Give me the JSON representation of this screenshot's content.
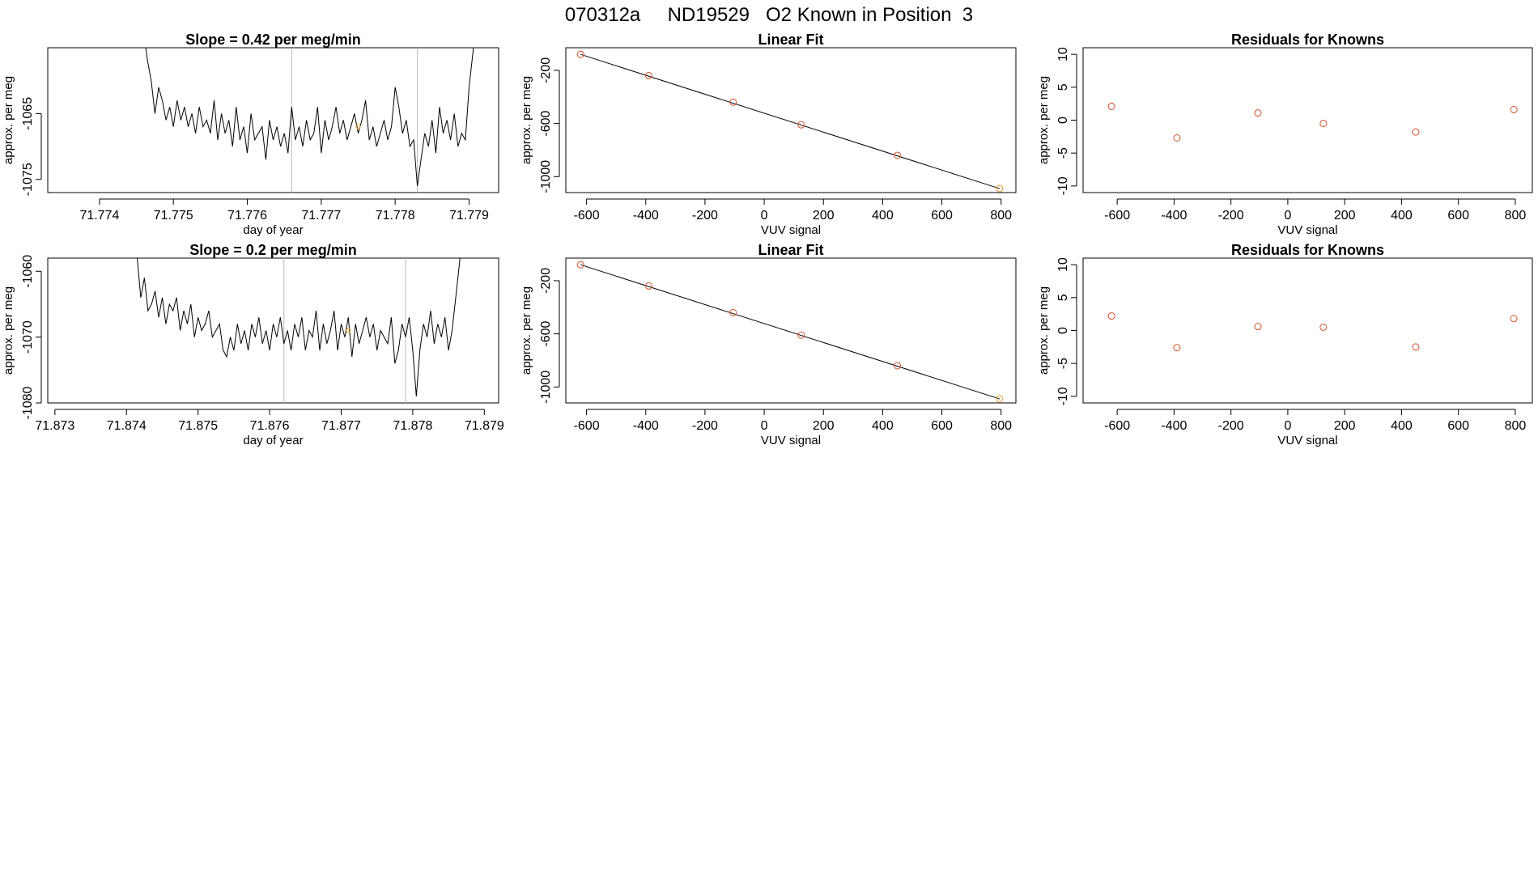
{
  "page_title": "070312a     ND19529   O2 Known in Position  3",
  "colors": {
    "series": "#000000",
    "marker": "#d9603b",
    "highlight": "#e8a33d",
    "vline": "#bbbbbb"
  },
  "chart_data": [
    {
      "id": "r1-timeseries",
      "type": "line",
      "title": "Slope =  0.42  per meg/min",
      "xlabel": "day of year",
      "ylabel": "approx. per meg",
      "xlim": [
        71.7733,
        71.7794
      ],
      "ylim": [
        -1077,
        -1055
      ],
      "xticks": [
        71.774,
        71.775,
        71.776,
        71.777,
        71.778,
        71.779
      ],
      "xtick_labels": [
        "71.774",
        "71.775",
        "71.776",
        "71.777",
        "71.778",
        "71.779"
      ],
      "yticks": [
        -1065,
        -1075
      ],
      "ytick_labels": [
        "-1065",
        "-1075"
      ],
      "vlines": [
        71.7766,
        71.7783
      ],
      "highlight_point": {
        "x": 71.7775,
        "y": -1067
      },
      "x": [
        71.77465,
        71.7747,
        71.77475,
        71.7748,
        71.77485,
        71.7749,
        71.77495,
        71.775,
        71.77505,
        71.7751,
        71.77515,
        71.7752,
        71.77525,
        71.7753,
        71.77535,
        71.7754,
        71.77545,
        71.7755,
        71.77555,
        71.7756,
        71.77565,
        71.7757,
        71.77575,
        71.7758,
        71.77585,
        71.7759,
        71.77595,
        71.776,
        71.77605,
        71.7761,
        71.77615,
        71.7762,
        71.77625,
        71.7763,
        71.77635,
        71.7764,
        71.77645,
        71.7765,
        71.77655,
        71.7766,
        71.77665,
        71.7767,
        71.77675,
        71.7768,
        71.77685,
        71.7769,
        71.77695,
        71.777,
        71.77705,
        71.7771,
        71.77715,
        71.7772,
        71.77725,
        71.7773,
        71.77735,
        71.7774,
        71.77745,
        71.7775,
        71.77755,
        71.7776,
        71.77765,
        71.7777,
        71.77775,
        71.7778,
        71.77785,
        71.7779,
        71.77795,
        71.778,
        71.77805,
        71.7781,
        71.77815,
        71.7782,
        71.77825,
        71.7783,
        71.77835,
        71.7784,
        71.77845,
        71.7785,
        71.77855,
        71.7786,
        71.77865,
        71.7787,
        71.77875,
        71.7788,
        71.77885,
        71.7789,
        71.77895,
        71.779,
        71.77905
      ],
      "y": [
        -1057,
        -1060,
        -1065,
        -1061,
        -1063,
        -1066,
        -1064,
        -1067,
        -1063,
        -1066,
        -1064,
        -1067,
        -1065,
        -1068,
        -1064,
        -1067,
        -1066,
        -1068,
        -1063,
        -1069,
        -1065,
        -1068,
        -1066,
        -1070,
        -1064,
        -1069,
        -1067,
        -1071,
        -1065,
        -1069,
        -1068,
        -1067,
        -1072,
        -1066,
        -1069,
        -1067,
        -1070,
        -1068,
        -1071,
        -1064,
        -1069,
        -1067,
        -1070,
        -1066,
        -1069,
        -1068,
        -1064,
        -1071,
        -1066,
        -1069,
        -1067,
        -1064,
        -1068,
        -1066,
        -1069,
        -1067,
        -1065,
        -1068,
        -1066,
        -1063,
        -1069,
        -1067,
        -1070,
        -1068,
        -1066,
        -1069,
        -1067,
        -1061,
        -1064,
        -1068,
        -1066,
        -1070,
        -1069,
        -1076,
        -1072,
        -1068,
        -1070,
        -1066,
        -1071,
        -1064,
        -1068,
        -1066,
        -1069,
        -1065,
        -1070,
        -1068,
        -1069,
        -1061,
        -1056
      ]
    },
    {
      "id": "r1-linearfit",
      "type": "scatter",
      "title": "Linear Fit",
      "xlabel": "VUV signal",
      "ylabel": "approx. per meg",
      "xlim": [
        -670,
        850
      ],
      "ylim": [
        -1120,
        -30
      ],
      "xticks": [
        -600,
        -400,
        -200,
        0,
        200,
        400,
        600,
        800
      ],
      "xtick_labels": [
        "-600",
        "-400",
        "-200",
        "0",
        "200",
        "400",
        "600",
        "800"
      ],
      "yticks": [
        -200,
        -600,
        -1000
      ],
      "ytick_labels": [
        "-200",
        "-600",
        "-1000"
      ],
      "points": [
        [
          -620,
          -80
        ],
        [
          -390,
          -240
        ],
        [
          -105,
          -440
        ],
        [
          125,
          -610
        ],
        [
          450,
          -840
        ],
        [
          795,
          -1090
        ]
      ],
      "fit_line": [
        [
          -620,
          -80
        ],
        [
          795,
          -1090
        ]
      ],
      "highlight_index": 5
    },
    {
      "id": "r1-residuals",
      "type": "scatter",
      "title": "Residuals for Knowns",
      "xlabel": "VUV signal",
      "ylabel": "approx. per meg",
      "xlim": [
        -720,
        860
      ],
      "ylim": [
        -11,
        11
      ],
      "xticks": [
        -600,
        -400,
        -200,
        0,
        200,
        400,
        600,
        800
      ],
      "xtick_labels": [
        "-600",
        "-400",
        "-200",
        "0",
        "200",
        "400",
        "600",
        "800"
      ],
      "yticks": [
        10,
        5,
        0,
        -5,
        -10
      ],
      "ytick_labels": [
        "10",
        "5",
        "0",
        "-5",
        "-10"
      ],
      "points": [
        [
          -620,
          2.1
        ],
        [
          -390,
          -2.7
        ],
        [
          -105,
          1.1
        ],
        [
          125,
          -0.5
        ],
        [
          450,
          -1.8
        ],
        [
          795,
          1.6
        ]
      ]
    },
    {
      "id": "r2-timeseries",
      "type": "line",
      "title": "Slope =  0.2  per meg/min",
      "xlabel": "day of year",
      "ylabel": "approx. per meg",
      "xlim": [
        71.8729,
        71.8792
      ],
      "ylim": [
        -1080,
        -1058
      ],
      "xticks": [
        71.873,
        71.874,
        71.875,
        71.876,
        71.877,
        71.878,
        71.879
      ],
      "xtick_labels": [
        "71.873",
        "71.874",
        "71.875",
        "71.876",
        "71.877",
        "71.878",
        "71.879"
      ],
      "yticks": [
        -1060,
        -1070,
        -1080
      ],
      "ytick_labels": [
        "-1060",
        "-1070",
        "-1080"
      ],
      "vlines": [
        71.8762,
        71.8779
      ],
      "highlight_point": {
        "x": 71.8771,
        "y": -1069
      },
      "x": [
        71.87415,
        71.8742,
        71.87425,
        71.8743,
        71.87435,
        71.8744,
        71.87445,
        71.8745,
        71.87455,
        71.8746,
        71.87465,
        71.8747,
        71.87475,
        71.8748,
        71.87485,
        71.8749,
        71.87495,
        71.875,
        71.87505,
        71.8751,
        71.87515,
        71.8752,
        71.87525,
        71.8753,
        71.87535,
        71.8754,
        71.87545,
        71.8755,
        71.87555,
        71.8756,
        71.87565,
        71.8757,
        71.87575,
        71.8758,
        71.87585,
        71.8759,
        71.87595,
        71.876,
        71.87605,
        71.8761,
        71.87615,
        71.8762,
        71.87625,
        71.8763,
        71.87635,
        71.8764,
        71.87645,
        71.8765,
        71.87655,
        71.8766,
        71.87665,
        71.8767,
        71.87675,
        71.8768,
        71.87685,
        71.8769,
        71.87695,
        71.877,
        71.87705,
        71.8771,
        71.87715,
        71.8772,
        71.87725,
        71.8773,
        71.87735,
        71.8774,
        71.87745,
        71.8775,
        71.87755,
        71.8776,
        71.87765,
        71.8777,
        71.87775,
        71.8778,
        71.87785,
        71.8779,
        71.87795,
        71.878,
        71.87805,
        71.8781,
        71.87815,
        71.8782,
        71.87825,
        71.8783,
        71.87835,
        71.8784,
        71.87845,
        71.8785,
        71.87855,
        71.8786,
        71.87865
      ],
      "y": [
        -1058,
        -1064,
        -1061,
        -1066,
        -1065,
        -1063,
        -1067,
        -1064,
        -1068,
        -1065,
        -1066,
        -1064,
        -1069,
        -1066,
        -1068,
        -1065,
        -1070,
        -1067,
        -1069,
        -1068,
        -1066,
        -1070,
        -1069,
        -1068,
        -1072,
        -1073,
        -1070,
        -1072,
        -1068,
        -1071,
        -1069,
        -1072,
        -1068,
        -1070,
        -1067,
        -1071,
        -1069,
        -1072,
        -1068,
        -1070,
        -1067,
        -1071,
        -1069,
        -1072,
        -1068,
        -1070,
        -1067,
        -1072,
        -1069,
        -1070,
        -1066,
        -1072,
        -1068,
        -1071,
        -1069,
        -1066,
        -1072,
        -1068,
        -1070,
        -1067,
        -1073,
        -1068,
        -1071,
        -1069,
        -1067,
        -1070,
        -1068,
        -1072,
        -1069,
        -1070,
        -1071,
        -1067,
        -1074,
        -1072,
        -1068,
        -1070,
        -1067,
        -1072,
        -1079,
        -1072,
        -1068,
        -1070,
        -1066,
        -1071,
        -1068,
        -1070,
        -1067,
        -1072,
        -1069,
        -1064,
        -1059
      ]
    },
    {
      "id": "r2-linearfit",
      "type": "scatter",
      "title": "Linear Fit",
      "xlabel": "VUV signal",
      "ylabel": "approx. per meg",
      "xlim": [
        -670,
        850
      ],
      "ylim": [
        -1120,
        -30
      ],
      "xticks": [
        -600,
        -400,
        -200,
        0,
        200,
        400,
        600,
        800
      ],
      "xtick_labels": [
        "-600",
        "-400",
        "-200",
        "0",
        "200",
        "400",
        "600",
        "800"
      ],
      "yticks": [
        -200,
        -600,
        -1000
      ],
      "ytick_labels": [
        "-200",
        "-600",
        "-1000"
      ],
      "points": [
        [
          -620,
          -80
        ],
        [
          -390,
          -240
        ],
        [
          -105,
          -440
        ],
        [
          125,
          -610
        ],
        [
          450,
          -840
        ],
        [
          795,
          -1090
        ]
      ],
      "fit_line": [
        [
          -620,
          -80
        ],
        [
          795,
          -1090
        ]
      ],
      "highlight_index": 5
    },
    {
      "id": "r2-residuals",
      "type": "scatter",
      "title": "Residuals for Knowns",
      "xlabel": "VUV signal",
      "ylabel": "approx. per meg",
      "xlim": [
        -720,
        860
      ],
      "ylim": [
        -11,
        11
      ],
      "xticks": [
        -600,
        -400,
        -200,
        0,
        200,
        400,
        600,
        800
      ],
      "xtick_labels": [
        "-600",
        "-400",
        "-200",
        "0",
        "200",
        "400",
        "600",
        "800"
      ],
      "yticks": [
        10,
        5,
        0,
        -5,
        -10
      ],
      "ytick_labels": [
        "10",
        "5",
        "0",
        "-5",
        "-10"
      ],
      "points": [
        [
          -620,
          2.2
        ],
        [
          -390,
          -2.6
        ],
        [
          -105,
          0.6
        ],
        [
          125,
          0.5
        ],
        [
          450,
          -2.5
        ],
        [
          795,
          1.8
        ]
      ]
    }
  ]
}
